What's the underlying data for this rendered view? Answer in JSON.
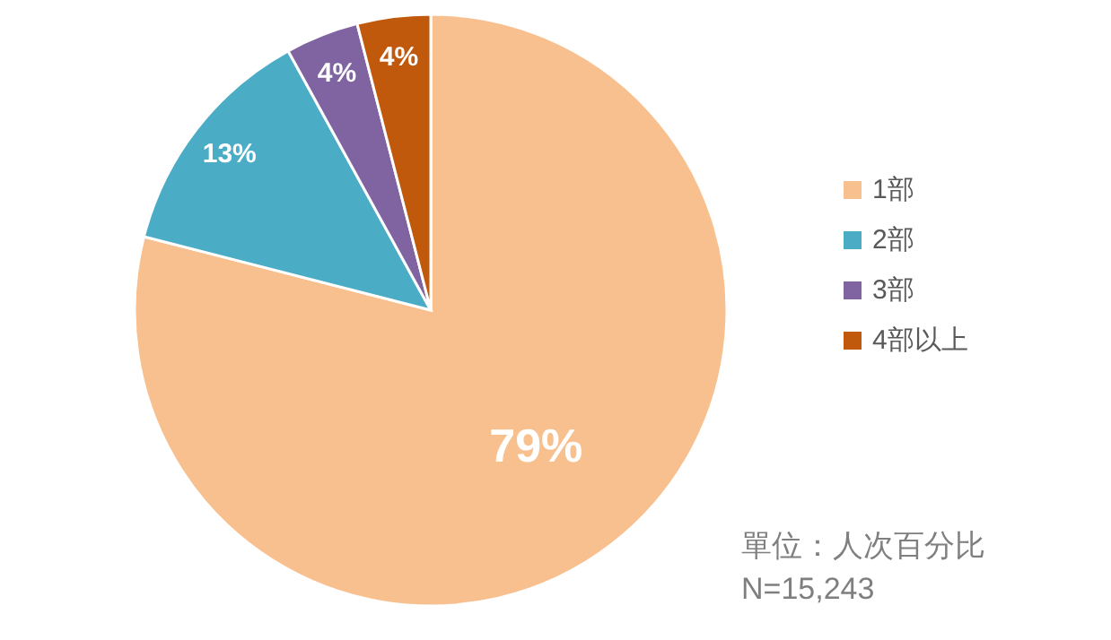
{
  "chart_data": {
    "type": "pie",
    "categories": [
      "1部",
      "2部",
      "3部",
      "4部以上"
    ],
    "values": [
      79,
      13,
      4,
      4
    ],
    "colors": [
      "#f9c08f",
      "#4bacc6",
      "#8064a2",
      "#c0590c"
    ],
    "value_labels": [
      "79%",
      "13%",
      "4%",
      "4%"
    ],
    "legend": "right",
    "annotations": [
      "單位：人次百分比",
      "N=15,243"
    ]
  }
}
